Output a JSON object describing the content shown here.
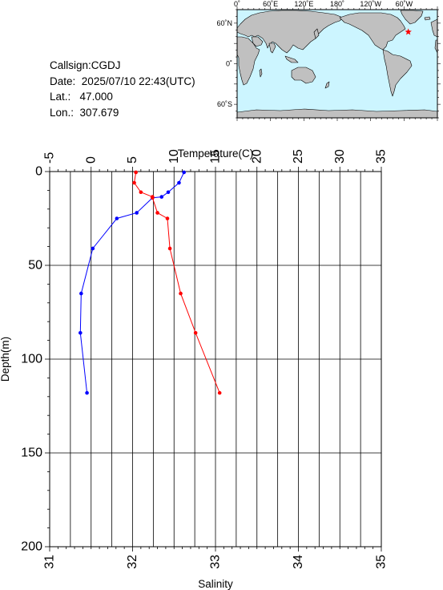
{
  "station": {
    "callsign_text": "Callsign:CGDJ",
    "date_label": "Date:",
    "date_value": "2025/07/10 22:43(UTC)",
    "lat_label": "Lat.:",
    "lat_value": "47.000",
    "lon_label": "Lon.:",
    "lon_value": "307.679"
  },
  "map": {
    "top_labels": [
      "0˚",
      "60˚E",
      "120˚E",
      "180˚",
      "120˚W",
      "60˚W"
    ],
    "lon_ticks": [
      0,
      60,
      120,
      180,
      240,
      300
    ],
    "lat_labels": [
      "60˚N",
      "0˚",
      "60˚S"
    ],
    "lat_ticks": [
      60,
      0,
      -60
    ],
    "lon_range": [
      0,
      360
    ],
    "lat_range": [
      -80,
      80
    ],
    "ocean_color": "#ccf5ff",
    "land_color": "#c0c0c0",
    "marker": {
      "lon": 307.679,
      "lat": 47.0,
      "color": "#ff0000",
      "symbol": "star"
    }
  },
  "chart_data": {
    "type": "line",
    "top_axis": {
      "label": "Temperature(C)",
      "range": [
        -5,
        35
      ],
      "ticks": [
        -5,
        0,
        5,
        10,
        15,
        20,
        25,
        30,
        35
      ]
    },
    "bottom_axis": {
      "label": "Salinity",
      "range": [
        31,
        35
      ],
      "ticks": [
        31,
        32,
        33,
        34,
        35
      ]
    },
    "y_axis": {
      "label": "Depth(m)",
      "range": [
        0,
        200
      ],
      "inverted": true,
      "ticks": [
        0,
        50,
        100,
        150,
        200
      ]
    },
    "grid": true,
    "series": [
      {
        "id": "temperature",
        "axis": "top",
        "color": "#0000ff",
        "points": [
          {
            "x": 11.2,
            "y": 0.4
          },
          {
            "x": 10.6,
            "y": 6
          },
          {
            "x": 9.3,
            "y": 11
          },
          {
            "x": 8.5,
            "y": 13.5
          },
          {
            "x": 7.4,
            "y": 14
          },
          {
            "x": 5.5,
            "y": 22
          },
          {
            "x": 3.1,
            "y": 25
          },
          {
            "x": 0.2,
            "y": 41
          },
          {
            "x": -1.2,
            "y": 65
          },
          {
            "x": -1.3,
            "y": 86
          },
          {
            "x": -0.5,
            "y": 118
          }
        ]
      },
      {
        "id": "salinity",
        "axis": "bottom",
        "color": "#ff0000",
        "points": [
          {
            "x": 32.04,
            "y": 0.4
          },
          {
            "x": 32.02,
            "y": 6
          },
          {
            "x": 32.1,
            "y": 11
          },
          {
            "x": 32.24,
            "y": 13.5
          },
          {
            "x": 32.24,
            "y": 14
          },
          {
            "x": 32.3,
            "y": 22
          },
          {
            "x": 32.42,
            "y": 25
          },
          {
            "x": 32.45,
            "y": 41
          },
          {
            "x": 32.58,
            "y": 65
          },
          {
            "x": 32.76,
            "y": 86
          },
          {
            "x": 33.05,
            "y": 118
          }
        ]
      }
    ]
  }
}
